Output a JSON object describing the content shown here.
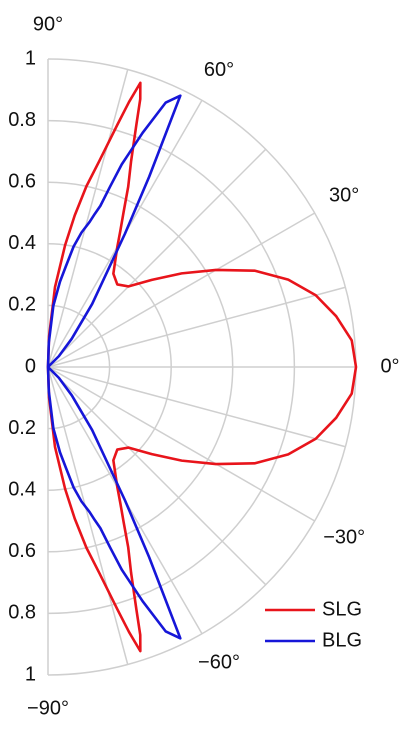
{
  "chart_data": {
    "type": "polar",
    "x": [
      -90,
      -88,
      -85,
      -82,
      -80,
      -78,
      -76,
      -74,
      -73,
      -72,
      -71,
      -70,
      -68,
      -66,
      -64,
      -62,
      -60,
      -55,
      -50,
      -45,
      -40,
      -35,
      -30,
      -25,
      -20,
      -15,
      -10,
      -5,
      0,
      5,
      10,
      15,
      20,
      25,
      30,
      35,
      40,
      45,
      50,
      55,
      60,
      62,
      64,
      66,
      68,
      70,
      71,
      72,
      73,
      74,
      76,
      78,
      80,
      82,
      85,
      88,
      90
    ],
    "series": [
      {
        "name": "SLG",
        "color": "#e8141b",
        "values": [
          0,
          0.1,
          0.26,
          0.4,
          0.5,
          0.6,
          0.69,
          0.82,
          0.9,
          0.97,
          0.92,
          0.84,
          0.72,
          0.64,
          0.56,
          0.5,
          0.45,
          0.37,
          0.35,
          0.37,
          0.44,
          0.53,
          0.63,
          0.74,
          0.83,
          0.9,
          0.95,
          0.99,
          1.0,
          0.99,
          0.95,
          0.9,
          0.83,
          0.74,
          0.63,
          0.53,
          0.44,
          0.37,
          0.35,
          0.37,
          0.45,
          0.5,
          0.56,
          0.64,
          0.72,
          0.84,
          0.92,
          0.97,
          0.9,
          0.82,
          0.69,
          0.6,
          0.5,
          0.4,
          0.26,
          0.1,
          0
        ]
      },
      {
        "name": "BLG",
        "color": "#1616d8",
        "values": [
          0,
          0.08,
          0.2,
          0.28,
          0.33,
          0.4,
          0.45,
          0.49,
          0.52,
          0.55,
          0.62,
          0.7,
          0.82,
          0.94,
          0.98,
          0.7,
          0.5,
          0.25,
          0.12,
          0.05,
          0,
          0,
          0,
          0,
          0,
          0,
          0,
          0,
          0,
          0,
          0,
          0,
          0,
          0,
          0,
          0,
          0,
          0.05,
          0.12,
          0.25,
          0.5,
          0.7,
          0.98,
          0.94,
          0.82,
          0.7,
          0.62,
          0.55,
          0.52,
          0.49,
          0.45,
          0.4,
          0.33,
          0.28,
          0.2,
          0.08,
          0
        ]
      }
    ],
    "rlim": [
      0,
      1
    ],
    "rticks": [
      0,
      0.2,
      0.4,
      0.6,
      0.8,
      1
    ],
    "thetalim": [
      -90,
      90
    ],
    "thetaticks": [
      {
        "value": -90,
        "label": "−90°"
      },
      {
        "value": -60,
        "label": "−60°"
      },
      {
        "value": -30,
        "label": "−30°"
      },
      {
        "value": 0,
        "label": "0°"
      },
      {
        "value": 30,
        "label": "30°"
      },
      {
        "value": 60,
        "label": "60°"
      },
      {
        "value": 90,
        "label": "90°"
      }
    ],
    "thetagrid": [
      -75,
      -45,
      -15,
      15,
      45,
      75
    ],
    "grid": true,
    "legend": "lower right"
  }
}
